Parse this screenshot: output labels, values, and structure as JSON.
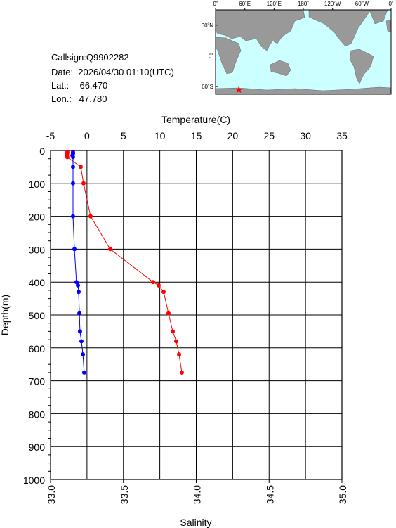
{
  "info": {
    "callsign": "Callsign:Q9902282",
    "date": "Date:  2026/04/30 01:10(UTC)",
    "lat": "Lat.:   -66.470",
    "lon": "Lon.:   47.780"
  },
  "map": {
    "lonlim": [
      0,
      360
    ],
    "latlim": [
      -75,
      90
    ],
    "lonticks": [
      {
        "value": 0,
        "label": "0˚"
      },
      {
        "value": 60,
        "label": "60˚E"
      },
      {
        "value": 120,
        "label": "120˚E"
      },
      {
        "value": 180,
        "label": "180˚"
      },
      {
        "value": 240,
        "label": "120˚W"
      },
      {
        "value": 300,
        "label": "60˚W"
      },
      {
        "value": 360,
        "label": "0˚"
      }
    ],
    "latticks": [
      {
        "value": 60,
        "label": "60˚N"
      },
      {
        "value": 0,
        "label": "0˚"
      },
      {
        "value": -60,
        "label": "60˚S"
      }
    ],
    "station": {
      "lon": 47.78,
      "lat": -66.47
    },
    "station_color": "#ff0000"
  },
  "chart_data": {
    "type": "line",
    "x2label": "Temperature(C)",
    "xlabel": "Salinity",
    "ylabel": "Depth(m)",
    "x2lim": [
      -5,
      35
    ],
    "x2ticks": [
      -5,
      0,
      5,
      10,
      15,
      20,
      25,
      30,
      35
    ],
    "xlim": [
      33,
      35
    ],
    "xticks": [
      {
        "value": 33,
        "label": "33.0"
      },
      {
        "value": 33.5,
        "label": "33.5"
      },
      {
        "value": 34,
        "label": "34.0"
      },
      {
        "value": 34.5,
        "label": "34.5"
      },
      {
        "value": 35,
        "label": "35.0"
      }
    ],
    "ylim": [
      1000,
      0
    ],
    "yticks": [
      0,
      100,
      200,
      300,
      400,
      500,
      600,
      700,
      800,
      900,
      1000
    ],
    "grid": true,
    "y": [
      5,
      10,
      15,
      20,
      50,
      100,
      200,
      300,
      400,
      410,
      430,
      495,
      550,
      580,
      620,
      675
    ],
    "series": [
      {
        "axis": "x2",
        "color": "#ff0000",
        "values": [
          -2.69,
          -2.72,
          -2.75,
          -2.7,
          -0.86,
          -0.47,
          0.49,
          3.19,
          9.07,
          9.84,
          10.52,
          11.19,
          11.77,
          12.25,
          12.64,
          13.02
        ]
      },
      {
        "axis": "x",
        "color": "#0000ff",
        "values": [
          33.154,
          33.154,
          33.15,
          33.154,
          33.154,
          33.154,
          33.154,
          33.164,
          33.178,
          33.188,
          33.193,
          33.198,
          33.202,
          33.212,
          33.222,
          33.231
        ]
      }
    ]
  }
}
